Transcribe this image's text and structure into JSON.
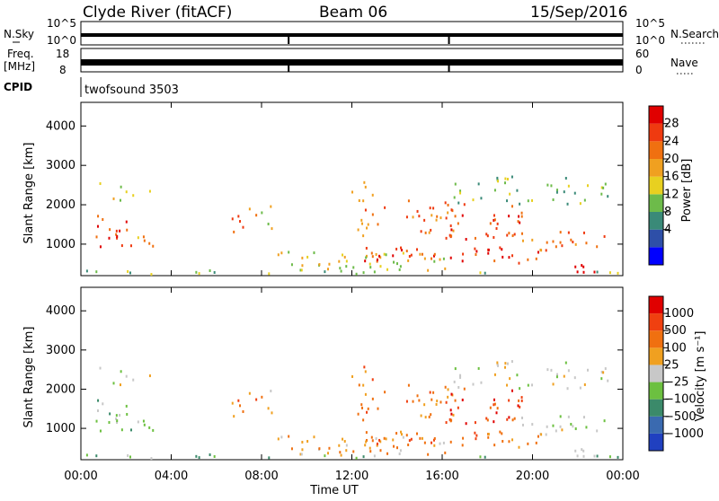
{
  "header": {
    "title": "Clyde River (fitACF)",
    "beam": "Beam 06",
    "date": "15/Sep/2016"
  },
  "panels": {
    "nsky": {
      "left_label": "N.Sky",
      "right_label": "N.Search",
      "ticks": [
        "10^5",
        "10^0"
      ]
    },
    "freq": {
      "left_label": "Freq.",
      "left_unit": "[MHz]",
      "ticks_left": [
        "18",
        "8"
      ],
      "right_label": "Nave",
      "ticks_right": [
        "60",
        "0"
      ]
    },
    "cpid": {
      "label": "CPID",
      "value": "twofsound 3503"
    }
  },
  "chart_data": [
    {
      "type": "heatmap",
      "name": "power",
      "xlabel": "Time UT",
      "ylabel": "Slant Range [km]",
      "yticks": [
        "4000",
        "3000",
        "2000",
        "1000"
      ],
      "colorbar_label": "Power [dB]",
      "colorbar_ticks": [
        "28",
        "24",
        "20",
        "16",
        "12",
        "8",
        "4"
      ],
      "colors": [
        "#0000ff",
        "#2e4fa8",
        "#3a8a78",
        "#6dbb4a",
        "#e8d020",
        "#f0a020",
        "#f07010",
        "#ef3a10",
        "#e00000"
      ]
    },
    {
      "type": "heatmap",
      "name": "velocity",
      "xlabel": "Time UT",
      "ylabel": "Slant Range [km]",
      "yticks": [
        "4000",
        "3000",
        "2000",
        "1000"
      ],
      "colorbar_label": "Velocity [m s⁻¹]",
      "colorbar_ticks": [
        "1000",
        "500",
        "100",
        "25",
        "−25",
        "−100",
        "−500",
        "−1000"
      ],
      "colors": [
        "#2040c0",
        "#3a6ab0",
        "#3b8a6a",
        "#6cc040",
        "#c8c8c8",
        "#f0a020",
        "#f07010",
        "#f04010",
        "#e00000"
      ]
    }
  ],
  "time_axis": {
    "ticks": [
      "00:00",
      "04:00",
      "08:00",
      "12:00",
      "16:00",
      "20:00",
      "00:00"
    ],
    "label": "Time UT"
  }
}
